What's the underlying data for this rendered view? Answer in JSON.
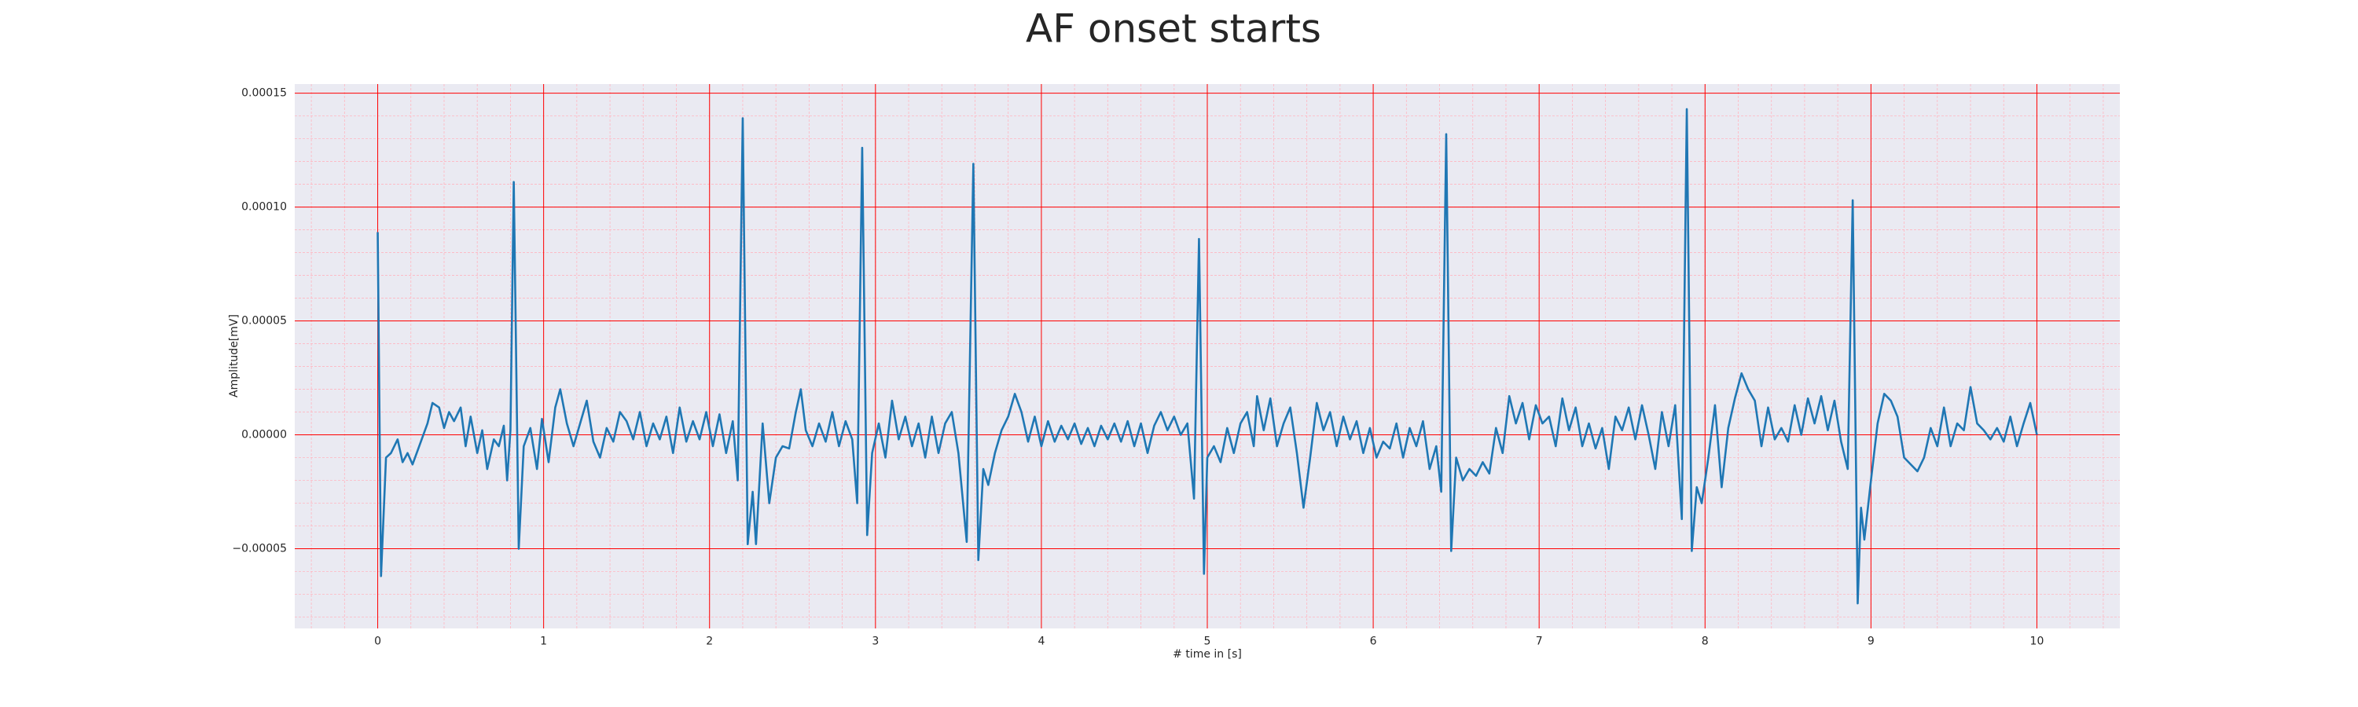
{
  "chart_data": {
    "type": "line",
    "title": "AF onset starts",
    "xlabel": "# time in [s]",
    "ylabel": "Amplitude[mV]",
    "xlim": [
      -0.5,
      10.5
    ],
    "ylim": [
      -8.5e-05,
      0.000154
    ],
    "xticks": [
      0,
      1,
      2,
      3,
      4,
      5,
      6,
      7,
      8,
      9,
      10
    ],
    "yticks": [
      {
        "value": -5e-05,
        "label": "−0.00005"
      },
      {
        "value": 0,
        "label": "0.00000"
      },
      {
        "value": 5e-05,
        "label": "0.00005"
      },
      {
        "value": 0.0001,
        "label": "0.00010"
      },
      {
        "value": 0.00015,
        "label": "0.00015"
      }
    ],
    "grid": true,
    "grid_color": "#ff0000",
    "minor_grid": {
      "x_step": 0.2,
      "y_step": 1e-05,
      "color": "#ffb6c1"
    },
    "background": "#eaeaf2",
    "x": [
      0,
      0.02,
      0.05,
      0.08,
      0.12,
      0.15,
      0.18,
      0.21,
      0.25,
      0.3,
      0.33,
      0.37,
      0.4,
      0.43,
      0.46,
      0.5,
      0.53,
      0.56,
      0.6,
      0.63,
      0.66,
      0.7,
      0.73,
      0.76,
      0.78,
      0.8,
      0.82,
      0.85,
      0.88,
      0.92,
      0.96,
      0.99,
      1.03,
      1.07,
      1.1,
      1.14,
      1.18,
      1.22,
      1.26,
      1.3,
      1.34,
      1.38,
      1.42,
      1.46,
      1.5,
      1.54,
      1.58,
      1.62,
      1.66,
      1.7,
      1.74,
      1.78,
      1.82,
      1.86,
      1.9,
      1.94,
      1.98,
      2.02,
      2.06,
      2.1,
      2.14,
      2.17,
      2.2,
      2.23,
      2.26,
      2.28,
      2.32,
      2.36,
      2.4,
      2.44,
      2.48,
      2.52,
      2.55,
      2.58,
      2.62,
      2.66,
      2.7,
      2.74,
      2.78,
      2.82,
      2.86,
      2.89,
      2.92,
      2.95,
      2.98,
      3.02,
      3.06,
      3.1,
      3.14,
      3.18,
      3.22,
      3.26,
      3.3,
      3.34,
      3.38,
      3.42,
      3.46,
      3.5,
      3.55,
      3.59,
      3.62,
      3.65,
      3.68,
      3.72,
      3.76,
      3.8,
      3.84,
      3.88,
      3.92,
      3.96,
      4.0,
      4.04,
      4.08,
      4.12,
      4.16,
      4.2,
      4.24,
      4.28,
      4.32,
      4.36,
      4.4,
      4.44,
      4.48,
      4.52,
      4.56,
      4.6,
      4.64,
      4.68,
      4.72,
      4.76,
      4.8,
      4.84,
      4.88,
      4.92,
      4.95,
      4.98,
      5.0,
      5.04,
      5.08,
      5.12,
      5.16,
      5.2,
      5.24,
      5.28,
      5.3,
      5.34,
      5.38,
      5.42,
      5.46,
      5.5,
      5.54,
      5.58,
      5.62,
      5.66,
      5.7,
      5.74,
      5.78,
      5.82,
      5.86,
      5.9,
      5.94,
      5.98,
      6.02,
      6.06,
      6.1,
      6.14,
      6.18,
      6.22,
      6.26,
      6.3,
      6.34,
      6.38,
      6.41,
      6.44,
      6.47,
      6.5,
      6.54,
      6.58,
      6.62,
      6.66,
      6.7,
      6.74,
      6.78,
      6.82,
      6.86,
      6.9,
      6.94,
      6.98,
      7.02,
      7.06,
      7.1,
      7.14,
      7.18,
      7.22,
      7.26,
      7.3,
      7.34,
      7.38,
      7.42,
      7.46,
      7.5,
      7.54,
      7.58,
      7.62,
      7.66,
      7.7,
      7.74,
      7.78,
      7.82,
      7.86,
      7.89,
      7.92,
      7.95,
      7.98,
      8.02,
      8.06,
      8.1,
      8.14,
      8.18,
      8.22,
      8.26,
      8.3,
      8.34,
      8.38,
      8.42,
      8.46,
      8.5,
      8.54,
      8.58,
      8.62,
      8.66,
      8.7,
      8.74,
      8.78,
      8.82,
      8.86,
      8.89,
      8.92,
      8.94,
      8.96,
      9.0,
      9.04,
      9.08,
      9.12,
      9.16,
      9.2,
      9.24,
      9.28,
      9.32,
      9.36,
      9.4,
      9.44,
      9.48,
      9.52,
      9.56,
      9.6,
      9.64,
      9.68,
      9.72,
      9.76,
      9.8,
      9.84,
      9.88,
      9.92,
      9.96,
      10.0
    ],
    "series": [
      {
        "color": "#1f77b4",
        "values": [
          8.9e-05,
          -6.2e-05,
          -1e-05,
          -8e-06,
          -2e-06,
          -1.2e-05,
          -8e-06,
          -1.3e-05,
          -5e-06,
          5e-06,
          1.4e-05,
          1.2e-05,
          3e-06,
          1e-05,
          6e-06,
          1.2e-05,
          -5e-06,
          8e-06,
          -8e-06,
          2e-06,
          -1.5e-05,
          -2e-06,
          -5e-06,
          4e-06,
          -2e-05,
          2e-06,
          0.000111,
          -5e-05,
          -5e-06,
          3e-06,
          -1.5e-05,
          7e-06,
          -1.2e-05,
          1.2e-05,
          2e-05,
          5e-06,
          -5e-06,
          5e-06,
          1.5e-05,
          -3e-06,
          -1e-05,
          3e-06,
          -3e-06,
          1e-05,
          6e-06,
          -2e-06,
          1e-05,
          -5e-06,
          5e-06,
          -2e-06,
          8e-06,
          -8e-06,
          1.2e-05,
          -3e-06,
          6e-06,
          -2e-06,
          1e-05,
          -5e-06,
          9e-06,
          -8e-06,
          6e-06,
          -2e-05,
          0.000139,
          -4.8e-05,
          -2.5e-05,
          -4.8e-05,
          5e-06,
          -3e-05,
          -1e-05,
          -5e-06,
          -6e-06,
          1e-05,
          2e-05,
          2e-06,
          -5e-06,
          5e-06,
          -3e-06,
          1e-05,
          -5e-06,
          6e-06,
          -2e-06,
          -3e-05,
          0.000126,
          -4.4e-05,
          -8e-06,
          5e-06,
          -1e-05,
          1.5e-05,
          -2e-06,
          8e-06,
          -5e-06,
          5e-06,
          -1e-05,
          8e-06,
          -8e-06,
          5e-06,
          1e-05,
          -8e-06,
          -4.7e-05,
          0.000119,
          -5.5e-05,
          -1.5e-05,
          -2.2e-05,
          -8e-06,
          2e-06,
          8e-06,
          1.8e-05,
          1e-05,
          -3e-06,
          8e-06,
          -5e-06,
          6e-06,
          -3e-06,
          4e-06,
          -2e-06,
          5e-06,
          -4e-06,
          3e-06,
          -5e-06,
          4e-06,
          -2e-06,
          5e-06,
          -3e-06,
          6e-06,
          -5e-06,
          5e-06,
          -8e-06,
          4e-06,
          1e-05,
          2e-06,
          8e-06,
          0,
          5e-06,
          -2.8e-05,
          8.6e-05,
          -6.1e-05,
          -1e-05,
          -5e-06,
          -1.2e-05,
          3e-06,
          -8e-06,
          5e-06,
          1e-05,
          -5e-06,
          1.7e-05,
          2e-06,
          1.6e-05,
          -5e-06,
          5e-06,
          1.2e-05,
          -8e-06,
          -3.2e-05,
          -1e-05,
          1.4e-05,
          2e-06,
          1e-05,
          -5e-06,
          8e-06,
          -2e-06,
          6e-06,
          -8e-06,
          3e-06,
          -1e-05,
          -3e-06,
          -6e-06,
          5e-06,
          -1e-05,
          3e-06,
          -5e-06,
          6e-06,
          -1.5e-05,
          -5e-06,
          -2.5e-05,
          0.000132,
          -5.1e-05,
          -1e-05,
          -2e-05,
          -1.5e-05,
          -1.8e-05,
          -1.2e-05,
          -1.7e-05,
          3e-06,
          -8e-06,
          1.7e-05,
          5e-06,
          1.4e-05,
          -2e-06,
          1.3e-05,
          5e-06,
          8e-06,
          -5e-06,
          1.6e-05,
          2e-06,
          1.2e-05,
          -5e-06,
          5e-06,
          -6e-06,
          3e-06,
          -1.5e-05,
          8e-06,
          2e-06,
          1.2e-05,
          -2e-06,
          1.3e-05,
          0,
          -1.5e-05,
          1e-05,
          -5e-06,
          1.3e-05,
          -3.7e-05,
          0.000143,
          -5.1e-05,
          -2.3e-05,
          -3e-05,
          -1e-05,
          1.3e-05,
          -2.3e-05,
          3e-06,
          1.6e-05,
          2.7e-05,
          2e-05,
          1.5e-05,
          -5e-06,
          1.2e-05,
          -2e-06,
          3e-06,
          -3e-06,
          1.3e-05,
          0,
          1.6e-05,
          5e-06,
          1.7e-05,
          2e-06,
          1.5e-05,
          -3e-06,
          -1.5e-05,
          0.000103,
          -7.4e-05,
          -3.2e-05,
          -4.6e-05,
          -2e-05,
          5e-06,
          1.8e-05,
          1.5e-05,
          8e-06,
          -1e-05,
          -1.3e-05,
          -1.6e-05,
          -1e-05,
          3e-06,
          -5e-06,
          1.2e-05,
          -5e-06,
          5e-06,
          2e-06,
          2.1e-05,
          5e-06,
          2e-06,
          -2e-06,
          3e-06,
          -3e-06,
          8e-06,
          -5e-06,
          5e-06,
          1.4e-05,
          0
        ]
      }
    ]
  }
}
